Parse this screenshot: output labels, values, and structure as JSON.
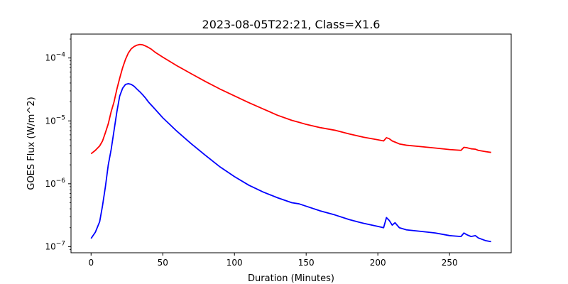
{
  "chart_data": {
    "type": "line",
    "title": "2023-08-05T22:21, Class=X1.6",
    "xlabel": "Duration (Minutes)",
    "ylabel": "GOES Flux (W/m^2)",
    "xlim": [
      -14,
      293
    ],
    "ylim": [
      8e-08,
      0.00024
    ],
    "y_scale": "log",
    "grid": false,
    "x_ticks": [
      {
        "value": 0,
        "label": "0"
      },
      {
        "value": 50,
        "label": "50"
      },
      {
        "value": 100,
        "label": "100"
      },
      {
        "value": 150,
        "label": "150"
      },
      {
        "value": 200,
        "label": "200"
      },
      {
        "value": 250,
        "label": "250"
      }
    ],
    "y_ticks": [
      {
        "value": 1e-07,
        "base": "10",
        "exp": "−7"
      },
      {
        "value": 1e-06,
        "base": "10",
        "exp": "−6"
      },
      {
        "value": 1e-05,
        "base": "10",
        "exp": "−5"
      },
      {
        "value": 0.0001,
        "base": "10",
        "exp": "−4"
      }
    ],
    "series": [
      {
        "color": "#ff0000",
        "x": [
          0,
          3,
          6,
          8,
          10,
          12,
          14,
          16,
          18,
          20,
          22,
          24,
          26,
          28,
          30,
          32,
          34,
          36,
          38,
          40,
          42,
          45,
          50,
          55,
          60,
          70,
          80,
          90,
          100,
          110,
          120,
          130,
          140,
          145,
          150,
          160,
          170,
          180,
          190,
          200,
          204,
          206,
          208,
          210,
          212,
          215,
          220,
          230,
          240,
          250,
          258,
          260,
          262,
          265,
          268,
          270,
          275,
          279
        ],
        "y": [
          3e-06,
          3.4e-06,
          4e-06,
          4.8e-06,
          6.5e-06,
          9e-06,
          1.4e-05,
          2e-05,
          3.2e-05,
          4.8e-05,
          7e-05,
          9.5e-05,
          0.00012,
          0.00014,
          0.000152,
          0.00016,
          0.000164,
          0.000162,
          0.000155,
          0.000147,
          0.000138,
          0.000122,
          0.000103,
          8.8e-05,
          7.5e-05,
          5.6e-05,
          4.2e-05,
          3.2e-05,
          2.5e-05,
          1.95e-05,
          1.55e-05,
          1.23e-05,
          1.02e-05,
          9.5e-06,
          8.8e-06,
          7.8e-06,
          7.1e-06,
          6.2e-06,
          5.5e-06,
          5e-06,
          4.8e-06,
          5.4e-06,
          5.2e-06,
          4.8e-06,
          4.6e-06,
          4.3e-06,
          4.1e-06,
          3.9e-06,
          3.7e-06,
          3.5e-06,
          3.4e-06,
          3.8e-06,
          3.75e-06,
          3.6e-06,
          3.55e-06,
          3.4e-06,
          3.25e-06,
          3.15e-06
        ]
      },
      {
        "color": "#0000ff",
        "x": [
          0,
          3,
          6,
          8,
          10,
          12,
          14,
          16,
          18,
          20,
          22,
          24,
          26,
          28,
          30,
          32,
          34,
          36,
          38,
          40,
          45,
          50,
          60,
          70,
          80,
          90,
          100,
          110,
          120,
          130,
          140,
          145,
          150,
          160,
          170,
          180,
          190,
          200,
          204,
          206,
          208,
          210,
          212,
          215,
          220,
          230,
          240,
          250,
          258,
          260,
          262,
          265,
          268,
          270,
          275,
          279
        ],
        "y": [
          1.35e-07,
          1.7e-07,
          2.5e-07,
          4.5e-07,
          9e-07,
          2e-06,
          3.5e-06,
          7e-06,
          1.4e-05,
          2.5e-05,
          3.3e-05,
          3.8e-05,
          3.9e-05,
          3.8e-05,
          3.55e-05,
          3.2e-05,
          2.9e-05,
          2.6e-05,
          2.3e-05,
          2e-05,
          1.5e-05,
          1.12e-05,
          6.8e-06,
          4.3e-06,
          2.8e-06,
          1.85e-06,
          1.3e-06,
          9.5e-07,
          7.4e-07,
          6e-07,
          5e-07,
          4.8e-07,
          4.4e-07,
          3.7e-07,
          3.2e-07,
          2.7e-07,
          2.35e-07,
          2.1e-07,
          2e-07,
          2.9e-07,
          2.6e-07,
          2.2e-07,
          2.4e-07,
          2e-07,
          1.85e-07,
          1.75e-07,
          1.65e-07,
          1.5e-07,
          1.45e-07,
          1.65e-07,
          1.55e-07,
          1.45e-07,
          1.5e-07,
          1.38e-07,
          1.25e-07,
          1.2e-07
        ]
      }
    ]
  }
}
